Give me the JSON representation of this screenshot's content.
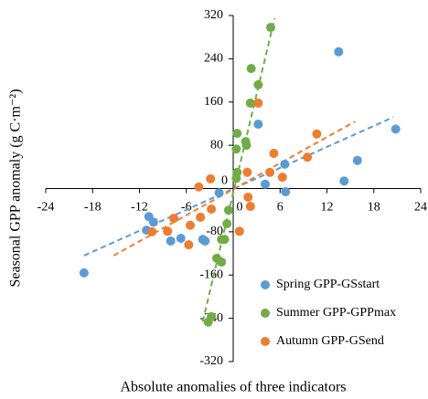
{
  "chart_data": {
    "type": "scatter",
    "x_label": "Absolute anomalies of three indicators",
    "y_label": "Seasonal GPP anomaly (g C·m⁻²)",
    "xlim": [
      -24,
      24
    ],
    "xticks": [
      -24,
      -18,
      -12,
      -6,
      0,
      6,
      12,
      18,
      24
    ],
    "ylim": [
      -320,
      320
    ],
    "yticks": [
      -320,
      -240,
      -160,
      -80,
      0,
      80,
      160,
      240,
      320
    ],
    "legend": "lower right",
    "series": [
      {
        "name": "Spring GPP-GSstart",
        "color": "#5b9bd5",
        "x": [
          -19.1,
          13.5,
          20.8,
          15.9,
          14.2,
          6.6,
          6.7,
          3.2,
          4.1,
          -10.8,
          -10.2,
          -11.1,
          -8,
          -6.7,
          -3.9,
          -3.6,
          -1.8
        ],
        "values": [
          -156,
          253,
          110,
          52,
          14,
          45,
          -6,
          119,
          8,
          -52,
          -62,
          -77,
          -97,
          -92,
          -94,
          -97,
          -8
        ],
        "trendline": {
          "x": [
            -19.1,
            20.5
          ],
          "y": [
            -124,
            132
          ]
        }
      },
      {
        "name": "Summer GPP-GPPmax",
        "color": "#70ad47",
        "x": [
          4.8,
          2.3,
          3.2,
          2.2,
          1.6,
          1.7,
          0.5,
          0.4,
          0.5,
          0.4,
          -0.6,
          -0.8,
          -1.1,
          -1.5,
          -2.1,
          -1.5,
          -2.8,
          -3.2
        ],
        "values": [
          298,
          222,
          192,
          158,
          87,
          80,
          102,
          73,
          30,
          19,
          -40,
          -65,
          -94,
          -94,
          -129,
          -136,
          -237,
          -247
        ],
        "trendline": {
          "x": [
            -3.9,
            5.3
          ],
          "y": [
            -246,
            315
          ]
        }
      },
      {
        "name": "Autumn GPP-GSend",
        "color": "#ed7d31",
        "x": [
          10.7,
          9.5,
          5.2,
          4.7,
          6.3,
          1.8,
          1.9,
          2.2,
          3.2,
          0.8,
          -2.9,
          -4.4,
          -5.5,
          -4.2,
          -5.7,
          -7.6,
          -8.4,
          -10.4,
          -2.8
        ],
        "values": [
          101,
          58,
          65,
          30,
          21,
          30,
          -16,
          -33,
          158,
          -79,
          18,
          3,
          -68,
          -53,
          -104,
          -55,
          -79,
          -80,
          -38
        ],
        "trendline": {
          "x": [
            -15.3,
            15.6
          ],
          "y": [
            -124,
            124
          ]
        }
      }
    ]
  }
}
